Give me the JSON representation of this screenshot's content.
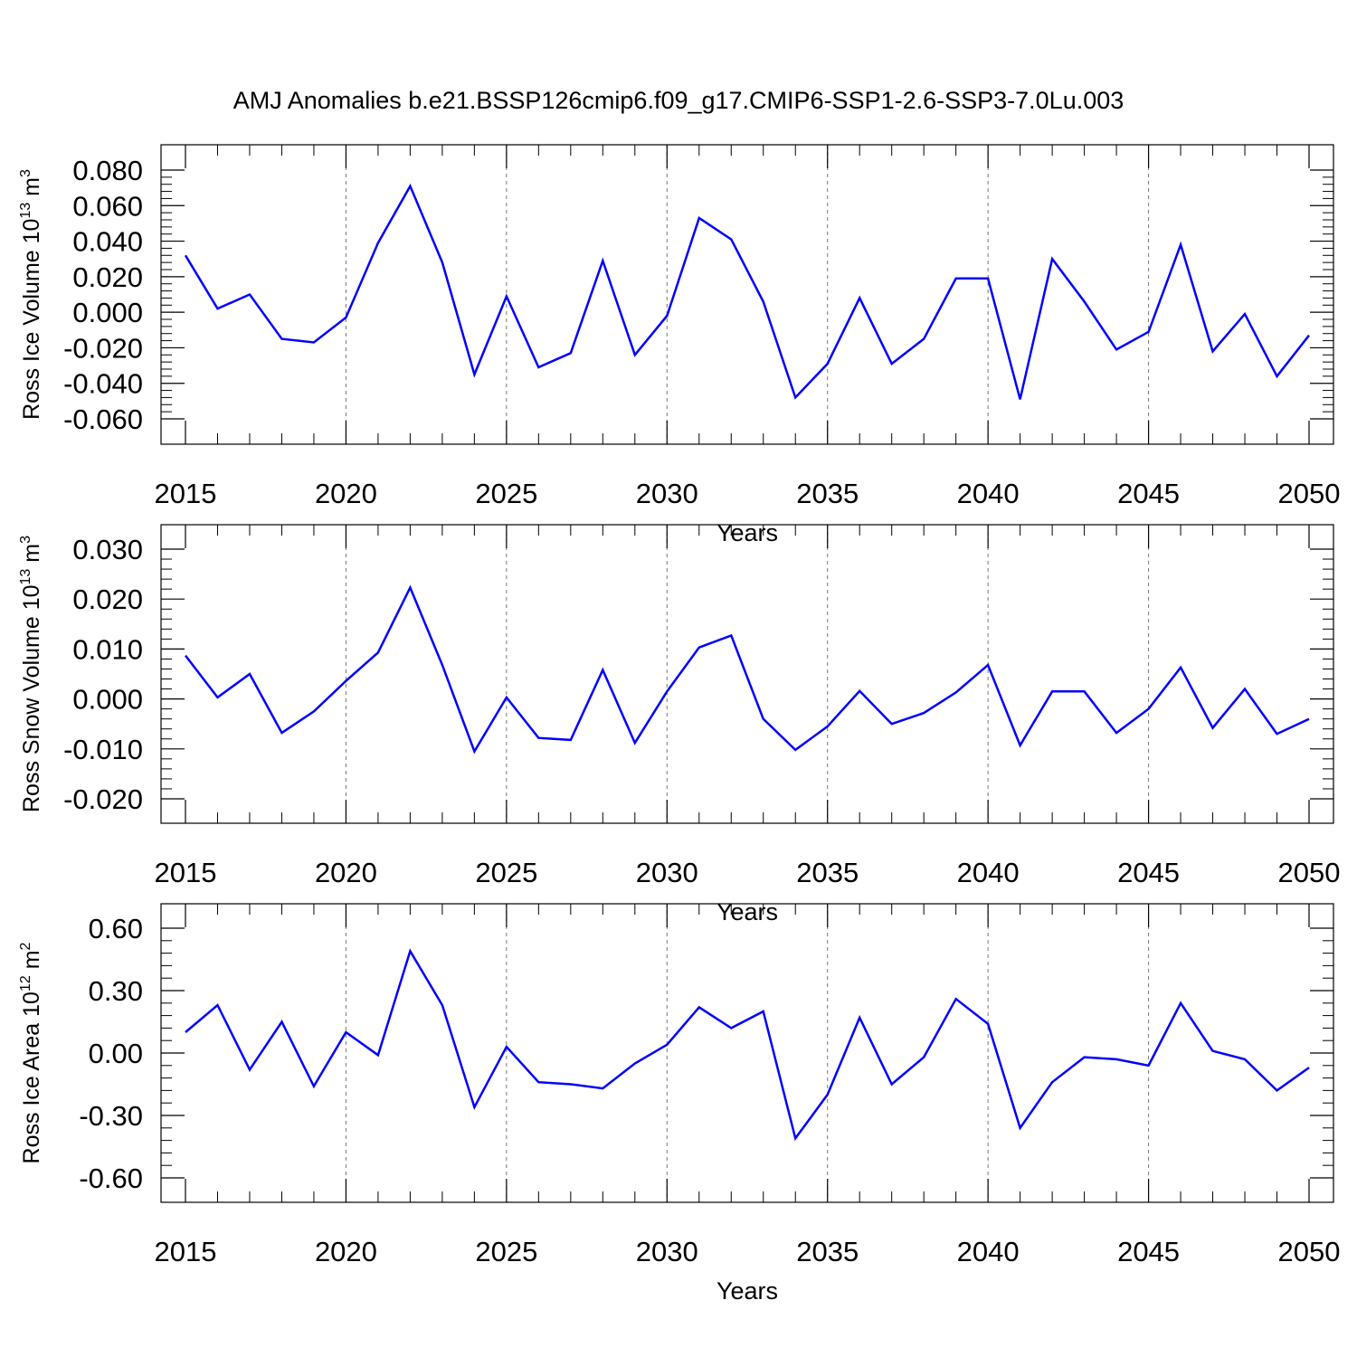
{
  "title": "AMJ Anomalies b.e21.BSSP126cmip6.f09_g17.CMIP6-SSP1-2.6-SSP3-7.0Lu.003",
  "line_color": "#0000ff",
  "chart_data": [
    {
      "type": "line",
      "ylabel": "Ross Ice Volume 10",
      "ylabel_exp": "13",
      "ylabel_unit": " m",
      "ylabel_unit_exp": "3",
      "xlabel": "Years",
      "xlim": [
        2015,
        2050
      ],
      "ylim": [
        -0.06,
        0.08
      ],
      "yticks": [
        -0.06,
        -0.04,
        -0.02,
        0.0,
        0.02,
        0.04,
        0.06,
        0.08
      ],
      "ytick_labels": [
        "-0.060",
        "-0.040",
        "-0.020",
        "0.000",
        "0.020",
        "0.040",
        "0.060",
        "0.080"
      ],
      "xticks": [
        2015,
        2020,
        2025,
        2030,
        2035,
        2040,
        2045,
        2050
      ],
      "xtick_labels": [
        "2015",
        "2020",
        "2025",
        "2030",
        "2035",
        "2040",
        "2045",
        "2050"
      ],
      "grid": "vertical-dashed",
      "x": [
        2015,
        2016,
        2017,
        2018,
        2019,
        2020,
        2021,
        2022,
        2023,
        2024,
        2025,
        2026,
        2027,
        2028,
        2029,
        2030,
        2031,
        2032,
        2033,
        2034,
        2035,
        2036,
        2037,
        2038,
        2039,
        2040,
        2041,
        2042,
        2043,
        2044,
        2045,
        2046,
        2047,
        2048,
        2049,
        2050
      ],
      "values": [
        0.032,
        0.002,
        0.01,
        -0.015,
        -0.017,
        -0.003,
        0.039,
        0.071,
        0.028,
        -0.035,
        0.009,
        -0.031,
        -0.023,
        0.029,
        -0.024,
        -0.002,
        0.053,
        0.041,
        0.006,
        -0.048,
        -0.029,
        0.008,
        -0.029,
        -0.015,
        0.019,
        0.019,
        -0.049,
        0.03,
        0.006,
        -0.021,
        -0.011,
        0.038,
        -0.022,
        -0.001,
        -0.036,
        -0.013
      ]
    },
    {
      "type": "line",
      "ylabel": "Ross Snow Volume 10",
      "ylabel_exp": "13",
      "ylabel_unit": " m",
      "ylabel_unit_exp": "3",
      "xlabel": "Years",
      "xlim": [
        2015,
        2050
      ],
      "ylim": [
        -0.02,
        0.03
      ],
      "yticks": [
        -0.02,
        -0.01,
        0.0,
        0.01,
        0.02,
        0.03
      ],
      "ytick_labels": [
        "-0.020",
        "-0.010",
        "0.000",
        "0.010",
        "0.020",
        "0.030"
      ],
      "xticks": [
        2015,
        2020,
        2025,
        2030,
        2035,
        2040,
        2045,
        2050
      ],
      "xtick_labels": [
        "2015",
        "2020",
        "2025",
        "2030",
        "2035",
        "2040",
        "2045",
        "2050"
      ],
      "grid": "vertical-dashed",
      "x": [
        2015,
        2016,
        2017,
        2018,
        2019,
        2020,
        2021,
        2022,
        2023,
        2024,
        2025,
        2026,
        2027,
        2028,
        2029,
        2030,
        2031,
        2032,
        2033,
        2034,
        2035,
        2036,
        2037,
        2038,
        2039,
        2040,
        2041,
        2042,
        2043,
        2044,
        2045,
        2046,
        2047,
        2048,
        2049,
        2050
      ],
      "values": [
        0.0087,
        0.0003,
        0.005,
        -0.0068,
        -0.0025,
        0.0036,
        0.0093,
        0.0223,
        0.0068,
        -0.0105,
        0.0003,
        -0.0078,
        -0.0082,
        0.0058,
        -0.0088,
        0.0015,
        0.0103,
        0.0127,
        -0.004,
        -0.0102,
        -0.0055,
        0.0016,
        -0.005,
        -0.0028,
        0.0013,
        0.0068,
        -0.0093,
        0.0015,
        0.0015,
        -0.0068,
        -0.002,
        0.0063,
        -0.0058,
        0.002,
        -0.007,
        -0.004
      ]
    },
    {
      "type": "line",
      "ylabel": "Ross Ice Area 10",
      "ylabel_exp": "12",
      "ylabel_unit": " m",
      "ylabel_unit_exp": "2",
      "xlabel": "Years",
      "xlim": [
        2015,
        2050
      ],
      "ylim": [
        -0.6,
        0.6
      ],
      "yticks": [
        -0.6,
        -0.3,
        0.0,
        0.3,
        0.6
      ],
      "ytick_labels": [
        "-0.60",
        "-0.30",
        "0.00",
        "0.30",
        "0.60"
      ],
      "xticks": [
        2015,
        2020,
        2025,
        2030,
        2035,
        2040,
        2045,
        2050
      ],
      "xtick_labels": [
        "2015",
        "2020",
        "2025",
        "2030",
        "2035",
        "2040",
        "2045",
        "2050"
      ],
      "grid": "vertical-dashed",
      "x": [
        2015,
        2016,
        2017,
        2018,
        2019,
        2020,
        2021,
        2022,
        2023,
        2024,
        2025,
        2026,
        2027,
        2028,
        2029,
        2030,
        2031,
        2032,
        2033,
        2034,
        2035,
        2036,
        2037,
        2038,
        2039,
        2040,
        2041,
        2042,
        2043,
        2044,
        2045,
        2046,
        2047,
        2048,
        2049,
        2050
      ],
      "values": [
        0.1,
        0.23,
        -0.08,
        0.15,
        -0.16,
        0.1,
        -0.01,
        0.49,
        0.23,
        -0.26,
        0.03,
        -0.14,
        -0.15,
        -0.17,
        -0.05,
        0.04,
        0.22,
        0.12,
        0.2,
        -0.41,
        -0.2,
        0.17,
        -0.15,
        -0.02,
        0.26,
        0.14,
        -0.36,
        -0.14,
        -0.02,
        -0.03,
        -0.06,
        0.24,
        0.01,
        -0.03,
        -0.18,
        -0.07
      ]
    }
  ]
}
